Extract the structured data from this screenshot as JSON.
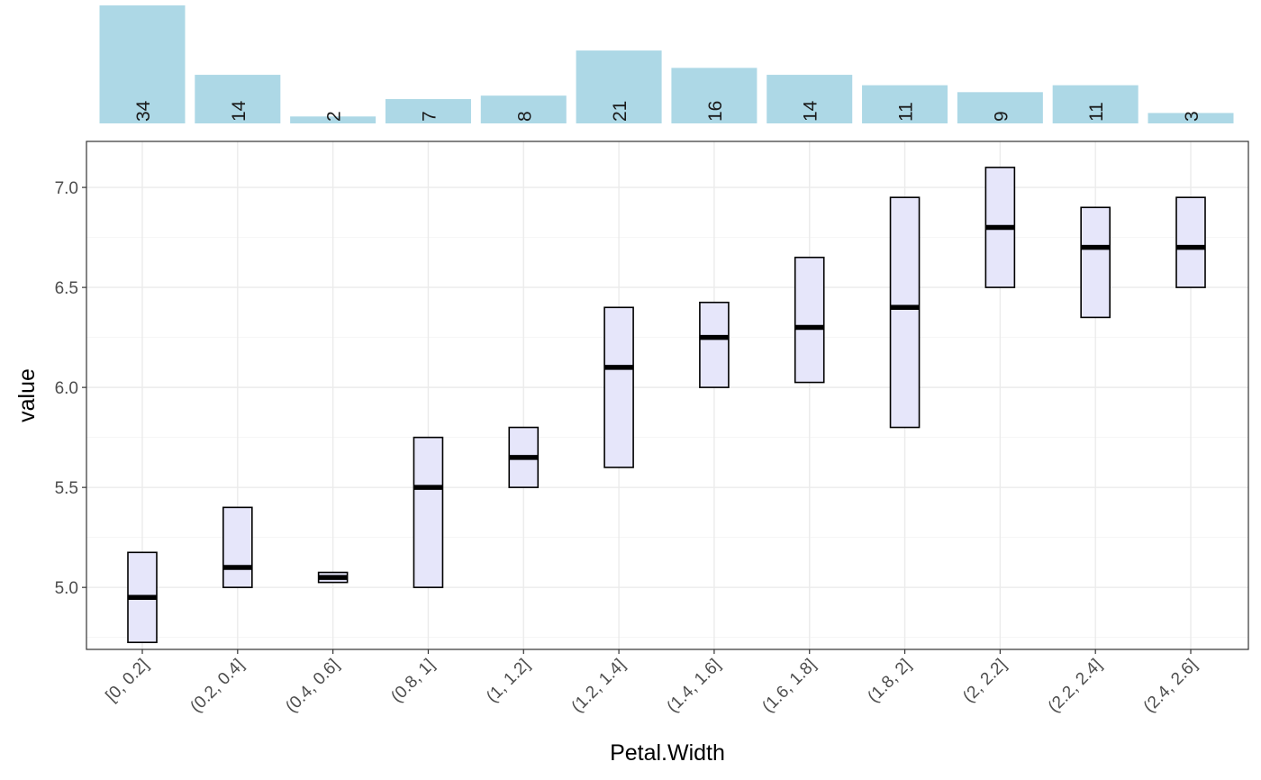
{
  "chart_data": {
    "type": "crossbar",
    "xlabel": "Petal.Width",
    "ylabel": "value",
    "ylim": [
      4.69,
      7.23
    ],
    "yticks": [
      5.0,
      5.5,
      6.0,
      6.5,
      7.0
    ],
    "ytick_labels": [
      "5.0",
      "5.5",
      "6.0",
      "6.5",
      "7.0"
    ],
    "grid": true,
    "categories": [
      "[0, 0.2]",
      "(0.2, 0.4]",
      "(0.4, 0.6]",
      "(0.8, 1]",
      "(1, 1.2]",
      "(1.2, 1.4]",
      "(1.4, 1.6]",
      "(1.6, 1.8]",
      "(1.8, 2]",
      "(2, 2.2]",
      "(2.2, 2.4]",
      "(2.4, 2.6]"
    ],
    "series": [
      {
        "stat": "median",
        "values": [
          4.95,
          5.1,
          5.05,
          5.5,
          5.65,
          6.1,
          6.25,
          6.3,
          6.4,
          6.8,
          6.7,
          6.7
        ]
      },
      {
        "stat": "lower",
        "values": [
          4.725,
          5.0,
          5.025,
          5.0,
          5.5,
          5.6,
          6.0,
          6.025,
          5.8,
          6.5,
          6.35,
          6.5
        ]
      },
      {
        "stat": "upper",
        "values": [
          5.175,
          5.4,
          5.075,
          5.75,
          5.8,
          6.4,
          6.425,
          6.65,
          6.95,
          7.1,
          6.9,
          6.95
        ]
      }
    ],
    "counts": {
      "values": [
        34,
        14,
        2,
        7,
        8,
        21,
        16,
        14,
        11,
        9,
        11,
        3
      ],
      "labels": [
        "34",
        "14",
        "2",
        "7",
        "8",
        "21",
        "16",
        "14",
        "11",
        "9",
        "11",
        "3"
      ]
    },
    "colors": {
      "count_bar": "#add8e6",
      "box_fill": "#e6e6fa",
      "box_stroke": "#000000",
      "grid_major": "#ebebeb",
      "grid_minor": "#f5f5f5",
      "panel_border": "#333333"
    }
  }
}
